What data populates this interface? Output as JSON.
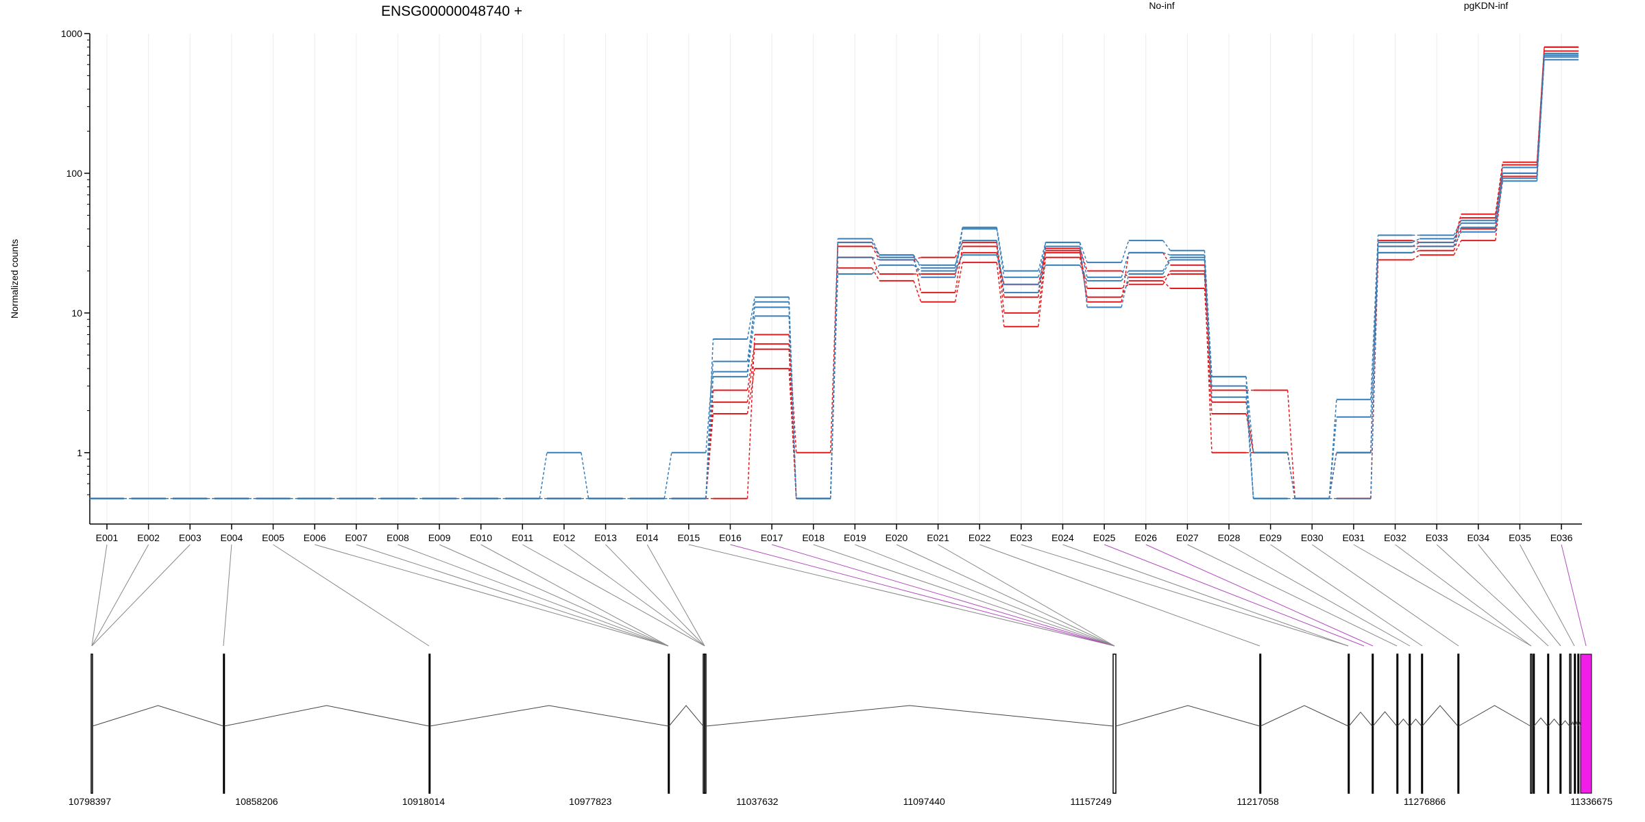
{
  "chart_data": {
    "type": "line",
    "title": "ENSG00000048740 +",
    "ylabel": "Normalized counts",
    "xlabel": "",
    "yscale": "log",
    "ylim": [
      0.4,
      1000
    ],
    "yticks": [
      1,
      10,
      100,
      1000
    ],
    "ytick_labels": [
      "1",
      "10",
      "100",
      "1000"
    ],
    "grid_x": true,
    "legend": [
      {
        "name": "No-inf",
        "color": "#e41a1c"
      },
      {
        "name": "pgKDN-inf",
        "color": "#377eb8"
      }
    ],
    "categories": [
      "E001",
      "E002",
      "E003",
      "E004",
      "E005",
      "E006",
      "E007",
      "E008",
      "E009",
      "E010",
      "E011",
      "E012",
      "E013",
      "E014",
      "E015",
      "E016",
      "E017",
      "E018",
      "E019",
      "E020",
      "E021",
      "E022",
      "E023",
      "E024",
      "E025",
      "E026",
      "E027",
      "E028",
      "E029",
      "E030",
      "E031",
      "E032",
      "E033",
      "E034",
      "E035",
      "E036"
    ],
    "series": [
      {
        "group": "No-inf",
        "color": "#e41a1c",
        "values": [
          0.47,
          0.47,
          0.47,
          0.47,
          0.47,
          0.47,
          0.47,
          0.47,
          0.47,
          0.47,
          0.47,
          0.47,
          0.47,
          0.47,
          0.47,
          2.8,
          6,
          0.47,
          30,
          24,
          25,
          32,
          10,
          28,
          12,
          27,
          22,
          2.8,
          2.8,
          0.47,
          1,
          30,
          30,
          48,
          115,
          800
        ]
      },
      {
        "group": "No-inf",
        "color": "#e41a1c",
        "values": [
          0.47,
          0.47,
          0.47,
          0.47,
          0.47,
          0.47,
          0.47,
          0.47,
          0.47,
          0.47,
          0.47,
          0.47,
          0.47,
          0.47,
          0.47,
          1.9,
          4,
          0.47,
          21,
          17,
          12,
          23,
          8,
          25,
          13,
          17,
          15,
          1.9,
          1,
          0.47,
          0.47,
          24,
          26,
          33,
          100,
          700
        ]
      },
      {
        "group": "No-inf",
        "color": "#e41a1c",
        "values": [
          0.47,
          0.47,
          0.47,
          0.47,
          0.47,
          0.47,
          0.47,
          0.47,
          0.47,
          0.47,
          0.47,
          0.47,
          0.47,
          0.47,
          0.47,
          0.47,
          7,
          1,
          32,
          26,
          14,
          30,
          13,
          29,
          20,
          18,
          19,
          1,
          1,
          0.47,
          1,
          33,
          32,
          51,
          120,
          800
        ]
      },
      {
        "group": "No-inf",
        "color": "#e41a1c",
        "values": [
          0.47,
          0.47,
          0.47,
          0.47,
          0.47,
          0.47,
          0.47,
          0.47,
          0.47,
          0.47,
          0.47,
          0.47,
          0.47,
          0.47,
          0.47,
          2.3,
          5.5,
          0.47,
          25,
          19,
          19,
          27,
          16,
          27,
          15,
          16,
          20,
          2.3,
          1,
          0.47,
          0.47,
          27,
          28,
          40,
          95,
          750
        ]
      },
      {
        "group": "pgKDN-inf",
        "color": "#377eb8",
        "values": [
          0.47,
          0.47,
          0.47,
          0.47,
          0.47,
          0.47,
          0.47,
          0.47,
          0.47,
          0.47,
          0.47,
          0.47,
          0.47,
          0.47,
          0.47,
          6.5,
          13,
          0.47,
          34,
          26,
          21,
          41,
          20,
          32,
          23,
          33,
          28,
          3.5,
          1,
          0.47,
          2.4,
          36,
          36,
          46,
          110,
          720
        ]
      },
      {
        "group": "pgKDN-inf",
        "color": "#377eb8",
        "values": [
          0.47,
          0.47,
          0.47,
          0.47,
          0.47,
          0.47,
          0.47,
          0.47,
          0.47,
          0.47,
          0.47,
          0.47,
          0.47,
          0.47,
          1,
          4.5,
          11,
          0.47,
          19,
          22,
          20,
          26,
          16,
          22,
          17,
          20,
          25,
          2.5,
          0.47,
          0.47,
          1.8,
          27,
          30,
          38,
          88,
          650
        ]
      },
      {
        "group": "pgKDN-inf",
        "color": "#377eb8",
        "values": [
          0.47,
          0.47,
          0.47,
          0.47,
          0.47,
          0.47,
          0.47,
          0.47,
          0.47,
          0.47,
          0.47,
          1,
          0.47,
          0.47,
          0.47,
          3.5,
          9.5,
          0.47,
          32,
          25,
          22,
          33,
          14,
          32,
          11,
          19,
          24,
          3.5,
          0.47,
          0.47,
          0.47,
          32,
          34,
          44,
          100,
          700
        ]
      },
      {
        "group": "pgKDN-inf",
        "color": "#377eb8",
        "values": [
          0.47,
          0.47,
          0.47,
          0.47,
          0.47,
          0.47,
          0.47,
          0.47,
          0.47,
          0.47,
          0.47,
          0.47,
          0.47,
          0.47,
          0.47,
          3.8,
          12,
          0.47,
          25,
          24,
          18,
          40,
          18,
          30,
          18,
          27,
          26,
          3,
          0.47,
          0.47,
          1,
          30,
          32,
          41,
          92,
          680
        ]
      }
    ]
  },
  "gene_model": {
    "coordinates": [
      "10798397",
      "10858206",
      "10918014",
      "10977823",
      "11037632",
      "11097440",
      "11157249",
      "11217058",
      "11276866",
      "11336675"
    ],
    "highlight_color": "#f01ee8",
    "feature_color": "#000000",
    "connector_color": "#888888",
    "connector_highlight_color": "#b44cc0"
  }
}
